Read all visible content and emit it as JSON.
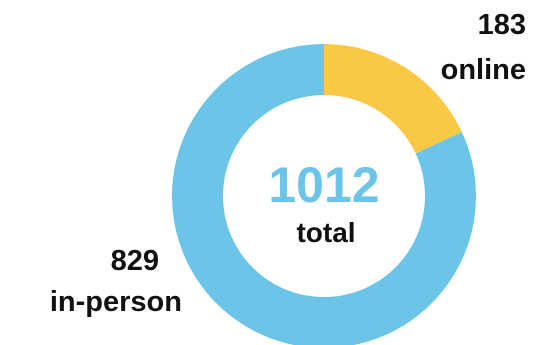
{
  "chart_data": {
    "type": "pie",
    "variant": "donut",
    "categories": [
      "online",
      "in-person"
    ],
    "values": [
      183,
      829
    ],
    "total": 1012,
    "center": {
      "value": "1012",
      "label": "total"
    },
    "slice_labels": [
      {
        "value": "183",
        "label": "online"
      },
      {
        "value": "829",
        "label": "in-person"
      }
    ],
    "colors": [
      "#f9c845",
      "#6cc4e8"
    ],
    "center_value_color": "#6cc4e8",
    "label_color": "#111111",
    "start_angle_deg": 0,
    "direction": "clockwise",
    "legend": "none"
  }
}
